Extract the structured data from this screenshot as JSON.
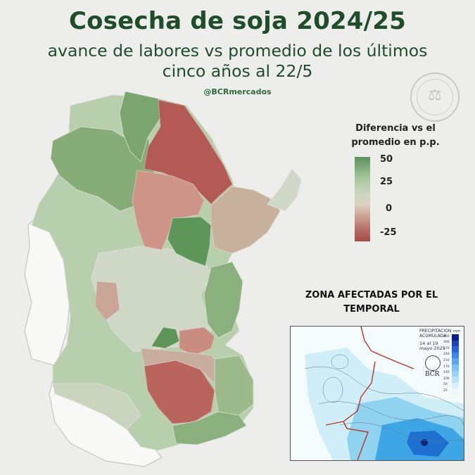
{
  "header": {
    "title": "Cosecha de soja 2024/25",
    "subtitle_line1": "avance de labores vs promedio de los últimos",
    "subtitle_line2": "cinco años al 22/5",
    "handle": "@BCRmercados"
  },
  "legend": {
    "title_line1": "Diferencia vs el",
    "title_line2": "promedio en p.p.",
    "ticks": [
      "50",
      "25",
      "0",
      "-25"
    ],
    "tick_values": [
      50,
      25,
      0,
      -25
    ],
    "range": [
      -35,
      50
    ],
    "colors": {
      "high": "#5b9257",
      "mid_high": "#a6c79c",
      "neutral": "#ddd3c5",
      "low": "#a84a46"
    }
  },
  "inset": {
    "title_line1": "ZONA AFECTADAS POR EL",
    "title_line2": "TEMPORAL",
    "caption_line1": "PRECIPITACION",
    "caption_line2": "ACUMULADA",
    "caption_line3": "14 al 19",
    "caption_line4": "mayo 2025",
    "unit": "mm",
    "brand": "BCR",
    "scale": [
      "400",
      "300",
      "270",
      "240",
      "210",
      "170",
      "140",
      "100",
      "50",
      "25"
    ]
  },
  "map": {
    "region_colors": {
      "north_west_green": "#8fb37f",
      "light_green": "#b8cfad",
      "pale": "#cdd7c3",
      "dark_green": "#5d9457",
      "red": "#b9605a",
      "pink": "#cb958a",
      "tan": "#c9b7a4",
      "white": "#f8f8f7"
    }
  }
}
